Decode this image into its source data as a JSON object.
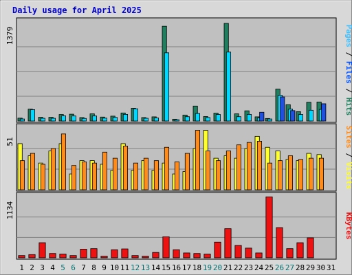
{
  "chart_data": {
    "type": "bar",
    "title": "Daily usage for April 2025",
    "days": [
      "1",
      "2",
      "3",
      "4",
      "5",
      "6",
      "7",
      "8",
      "9",
      "10",
      "11",
      "12",
      "13",
      "14",
      "15",
      "16",
      "17",
      "18",
      "19",
      "20",
      "21",
      "22",
      "23",
      "24",
      "25",
      "26",
      "27",
      "28",
      "29",
      "30",
      "31"
    ],
    "weekend_days": [
      "5",
      "6",
      "12",
      "13",
      "19",
      "20",
      "26",
      "27"
    ],
    "colors": {
      "title": "#0000cc",
      "weekday_label": "#000000",
      "weekend_label": "#007070",
      "panel_bg": "#c0c0c0",
      "frame_bg": "#d8d8d8",
      "hits": "#1f7f5f",
      "files": "#00d8ff",
      "pages": "#2050e0",
      "visits": "#ffff30",
      "sites": "#ff8c1a",
      "kbytes": "#ee1111"
    },
    "panels": [
      {
        "id": "hits_files_pages",
        "ymax_label": "1379",
        "ymax": 1379,
        "legend": [
          {
            "label": "Pages",
            "color": "#40c0ff"
          },
          {
            "label": "Files",
            "color": "#0050ff"
          },
          {
            "label": "Hits",
            "color": "#1f7f5f"
          }
        ],
        "series": [
          {
            "name": "Hits",
            "color": "#1f7f5f",
            "values": [
              40,
              165,
              52,
              52,
              90,
              95,
              48,
              100,
              55,
              68,
              112,
              178,
              48,
              58,
              1320,
              25,
              83,
              208,
              62,
              110,
              1360,
              100,
              142,
              58,
              35,
              445,
              228,
              130,
              262,
              265,
              0
            ]
          },
          {
            "name": "Files",
            "color": "#00d8ff",
            "values": [
              28,
              158,
              38,
              38,
              72,
              70,
              36,
              70,
              40,
              50,
              92,
              170,
              38,
              42,
              950,
              18,
              60,
              105,
              48,
              90,
              960,
              60,
              92,
              42,
              28,
              358,
              165,
              90,
              150,
              162,
              0
            ]
          },
          {
            "name": "Pages",
            "color": "#2050e0",
            "values": [
              0,
              0,
              0,
              0,
              0,
              0,
              0,
              0,
              0,
              0,
              0,
              0,
              0,
              0,
              0,
              0,
              0,
              0,
              0,
              0,
              0,
              0,
              0,
              122,
              0,
              335,
              145,
              0,
              0,
              240,
              0
            ]
          }
        ]
      },
      {
        "id": "visits_sites",
        "ymax_label": "51",
        "ymax": 51,
        "legend": [
          {
            "label": "Sites",
            "color": "#ff8c1a"
          },
          {
            "label": "Visits",
            "color": "#ffff30"
          }
        ],
        "series": [
          {
            "name": "Visits",
            "color": "#ffff30",
            "values": [
              38,
              28,
              22,
              32,
              38,
              13,
              24,
              24,
              21,
              16,
              38,
              16,
              24,
              16,
              22,
              13,
              15,
              34,
              49,
              26,
              28,
              26,
              34,
              44,
              35,
              32,
              25,
              24,
              30,
              29,
              0
            ]
          },
          {
            "name": "Sites",
            "color": "#ff8c1a",
            "values": [
              24,
              30,
              21,
              34,
              46,
              20,
              23,
              22,
              31,
              26,
              36,
              22,
              26,
              24,
              35,
              23,
              30,
              49,
              32,
              24,
              32,
              37,
              39,
              40,
              22,
              24,
              28,
              25,
              26,
              26,
              0
            ]
          }
        ]
      },
      {
        "id": "kbytes",
        "ymax_label": "1134",
        "ymax": 1134,
        "legend": [
          {
            "label": "KBytes",
            "color": "#ee1111"
          }
        ],
        "series": [
          {
            "name": "KBytes",
            "color": "#ee1111",
            "values": [
              42,
              60,
              280,
              80,
              70,
              42,
              160,
              170,
              30,
              150,
              165,
              42,
              30,
              100,
              390,
              150,
              90,
              80,
              70,
              290,
              540,
              230,
              180,
              90,
              1130,
              560,
              170,
              280,
              370,
              0,
              0
            ]
          }
        ]
      }
    ]
  }
}
